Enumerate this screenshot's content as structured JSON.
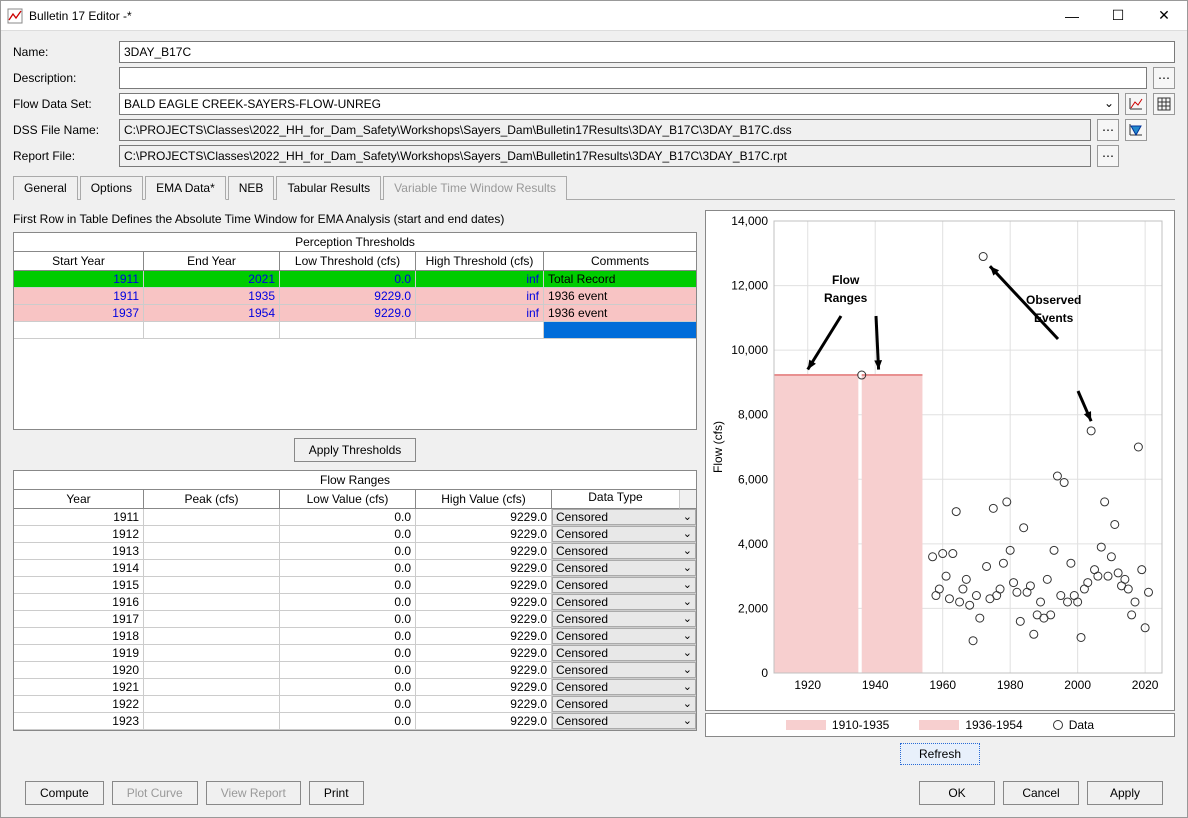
{
  "window": {
    "title": "Bulletin 17 Editor -*"
  },
  "form": {
    "nameLabel": "Name:",
    "nameValue": "3DAY_B17C",
    "descLabel": "Description:",
    "descValue": "",
    "flowLabel": "Flow Data Set:",
    "flowValue": "BALD EAGLE CREEK-SAYERS-FLOW-UNREG",
    "dssLabel": "DSS File Name:",
    "dssValue": "C:\\PROJECTS\\Classes\\2022_HH_for_Dam_Safety\\Workshops\\Sayers_Dam\\Bulletin17Results\\3DAY_B17C\\3DAY_B17C.dss",
    "repLabel": "Report File:",
    "repValue": "C:\\PROJECTS\\Classes\\2022_HH_for_Dam_Safety\\Workshops\\Sayers_Dam\\Bulletin17Results\\3DAY_B17C\\3DAY_B17C.rpt"
  },
  "tabs": {
    "items": [
      "General",
      "Options",
      "EMA Data*",
      "NEB",
      "Tabular Results",
      "Variable Time Window Results"
    ],
    "active": 2,
    "disabled": 5
  },
  "subtitle": "First Row in Table Defines the Absolute Time Window for EMA Analysis (start and end dates)",
  "pt": {
    "title": "Perception Thresholds",
    "headers": [
      "Start Year",
      "End Year",
      "Low Threshold (cfs)",
      "High Threshold (cfs)",
      "Comments"
    ],
    "rows": [
      {
        "sy": "1911",
        "ey": "2021",
        "lo": "0.0",
        "hi": "inf",
        "c": "Total Record",
        "cls": "pt-green"
      },
      {
        "sy": "1911",
        "ey": "1935",
        "lo": "9229.0",
        "hi": "inf",
        "c": "1936 event",
        "cls": "pt-pink"
      },
      {
        "sy": "1937",
        "ey": "1954",
        "lo": "9229.0",
        "hi": "inf",
        "c": "1936 event",
        "cls": "pt-pink"
      },
      {
        "sy": "",
        "ey": "",
        "lo": "",
        "hi": "",
        "c": "",
        "cls": "pt-sel"
      }
    ]
  },
  "applyThresholds": "Apply Thresholds",
  "fr": {
    "title": "Flow Ranges",
    "headers": [
      "Year",
      "Peak (cfs)",
      "Low Value (cfs)",
      "High Value (cfs)",
      "Data Type"
    ],
    "rows": [
      {
        "y": "1911",
        "p": "",
        "lo": "0.0",
        "hi": "9229.0",
        "dt": "Censored"
      },
      {
        "y": "1912",
        "p": "",
        "lo": "0.0",
        "hi": "9229.0",
        "dt": "Censored"
      },
      {
        "y": "1913",
        "p": "",
        "lo": "0.0",
        "hi": "9229.0",
        "dt": "Censored"
      },
      {
        "y": "1914",
        "p": "",
        "lo": "0.0",
        "hi": "9229.0",
        "dt": "Censored"
      },
      {
        "y": "1915",
        "p": "",
        "lo": "0.0",
        "hi": "9229.0",
        "dt": "Censored"
      },
      {
        "y": "1916",
        "p": "",
        "lo": "0.0",
        "hi": "9229.0",
        "dt": "Censored"
      },
      {
        "y": "1917",
        "p": "",
        "lo": "0.0",
        "hi": "9229.0",
        "dt": "Censored"
      },
      {
        "y": "1918",
        "p": "",
        "lo": "0.0",
        "hi": "9229.0",
        "dt": "Censored"
      },
      {
        "y": "1919",
        "p": "",
        "lo": "0.0",
        "hi": "9229.0",
        "dt": "Censored"
      },
      {
        "y": "1920",
        "p": "",
        "lo": "0.0",
        "hi": "9229.0",
        "dt": "Censored"
      },
      {
        "y": "1921",
        "p": "",
        "lo": "0.0",
        "hi": "9229.0",
        "dt": "Censored"
      },
      {
        "y": "1922",
        "p": "",
        "lo": "0.0",
        "hi": "9229.0",
        "dt": "Censored"
      },
      {
        "y": "1923",
        "p": "",
        "lo": "0.0",
        "hi": "9229.0",
        "dt": "Censored"
      }
    ]
  },
  "chart": {
    "type": "scatter",
    "ylabel": "Flow (cfs)",
    "xlim": [
      1910,
      2025
    ],
    "ylim": [
      0,
      14000
    ],
    "yticks": [
      0,
      2000,
      4000,
      6000,
      8000,
      10000,
      12000,
      14000
    ],
    "ytickLabels": [
      "0",
      "2,000",
      "4,000",
      "6,000",
      "8,000",
      "10,000",
      "12,000",
      "14,000"
    ],
    "xticks": [
      1920,
      1940,
      1960,
      1980,
      2000,
      2020
    ],
    "grid_color": "#e0e0e0",
    "axis_color": "#c0c0c0",
    "rangeColor": "#f7cfcf",
    "ranges": [
      {
        "x0": 1910,
        "x1": 1935,
        "y": 9229
      },
      {
        "x0": 1936,
        "x1": 1954,
        "y": 9229
      }
    ],
    "data": [
      [
        1936,
        9229
      ],
      [
        1957,
        3600
      ],
      [
        1958,
        2400
      ],
      [
        1959,
        2600
      ],
      [
        1960,
        3700
      ],
      [
        1961,
        3000
      ],
      [
        1962,
        2300
      ],
      [
        1963,
        3700
      ],
      [
        1964,
        5000
      ],
      [
        1965,
        2200
      ],
      [
        1966,
        2600
      ],
      [
        1967,
        2900
      ],
      [
        1968,
        2100
      ],
      [
        1969,
        1000
      ],
      [
        1970,
        2400
      ],
      [
        1971,
        1700
      ],
      [
        1972,
        12900
      ],
      [
        1973,
        3300
      ],
      [
        1974,
        2300
      ],
      [
        1975,
        5100
      ],
      [
        1976,
        2400
      ],
      [
        1977,
        2600
      ],
      [
        1978,
        3400
      ],
      [
        1979,
        5300
      ],
      [
        1980,
        3800
      ],
      [
        1981,
        2800
      ],
      [
        1982,
        2500
      ],
      [
        1983,
        1600
      ],
      [
        1984,
        4500
      ],
      [
        1985,
        2500
      ],
      [
        1986,
        2700
      ],
      [
        1987,
        1200
      ],
      [
        1988,
        1800
      ],
      [
        1989,
        2200
      ],
      [
        1990,
        1700
      ],
      [
        1991,
        2900
      ],
      [
        1992,
        1800
      ],
      [
        1993,
        3800
      ],
      [
        1994,
        6100
      ],
      [
        1995,
        2400
      ],
      [
        1996,
        5900
      ],
      [
        1997,
        2200
      ],
      [
        1998,
        3400
      ],
      [
        1999,
        2400
      ],
      [
        2000,
        2200
      ],
      [
        2001,
        1100
      ],
      [
        2002,
        2600
      ],
      [
        2003,
        2800
      ],
      [
        2004,
        7500
      ],
      [
        2005,
        3200
      ],
      [
        2006,
        3000
      ],
      [
        2007,
        3900
      ],
      [
        2008,
        5300
      ],
      [
        2009,
        3000
      ],
      [
        2010,
        3600
      ],
      [
        2011,
        4600
      ],
      [
        2012,
        3100
      ],
      [
        2013,
        2700
      ],
      [
        2014,
        2900
      ],
      [
        2015,
        2600
      ],
      [
        2016,
        1800
      ],
      [
        2017,
        2200
      ],
      [
        2018,
        7000
      ],
      [
        2019,
        3200
      ],
      [
        2020,
        1400
      ],
      [
        2021,
        2500
      ]
    ],
    "marker_color": "#333",
    "marker_size": 4,
    "annotations": {
      "flow": "Flow\nRanges",
      "observed": "Observed\nEvents"
    }
  },
  "legend": {
    "r1": "1910-1935",
    "r2": "1936-1954",
    "data": "Data"
  },
  "refresh": "Refresh",
  "bottom": {
    "compute": "Compute",
    "plot": "Plot Curve",
    "view": "View Report",
    "print": "Print",
    "ok": "OK",
    "cancel": "Cancel",
    "apply": "Apply"
  }
}
